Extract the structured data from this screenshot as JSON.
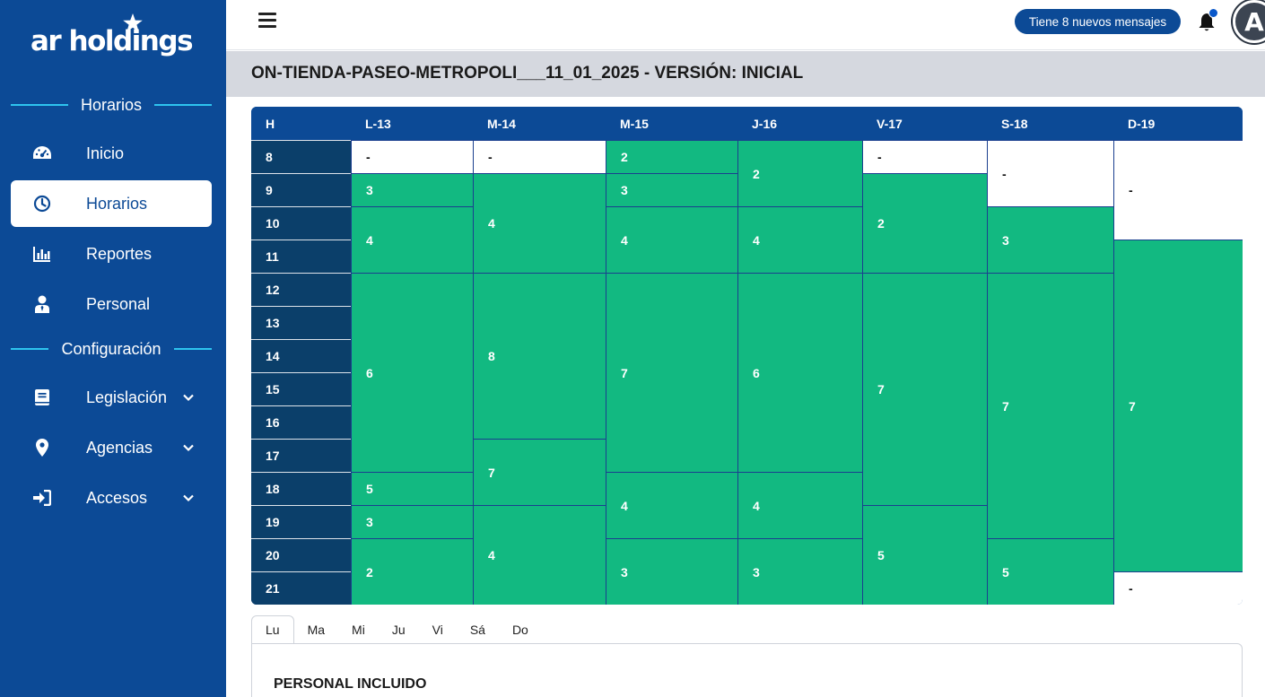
{
  "brand": {
    "name": "ar holdings"
  },
  "sidebar": {
    "section_horarios": "Horarios",
    "section_config": "Configuración",
    "items": [
      {
        "label": "Inicio",
        "icon": "dashboard-gauge-icon"
      },
      {
        "label": "Horarios",
        "icon": "clock-icon",
        "active": true
      },
      {
        "label": "Reportes",
        "icon": "bar-chart-icon"
      },
      {
        "label": "Personal",
        "icon": "user-tie-icon"
      },
      {
        "label": "Legislación",
        "icon": "book-icon",
        "expandable": true
      },
      {
        "label": "Agencias",
        "icon": "map-pin-icon",
        "expandable": true
      },
      {
        "label": "Accesos",
        "icon": "sign-in-icon",
        "expandable": true
      }
    ]
  },
  "header": {
    "messages_label": "Tiene 8 nuevos mensajes",
    "avatar_initial": "A"
  },
  "page_title": "ON-TIENDA-PASEO-METROPOLI___11_01_2025 - VERSIÓN: INICIAL",
  "schedule": {
    "hour_header": "H",
    "hours": [
      "8",
      "9",
      "10",
      "11",
      "12",
      "13",
      "14",
      "15",
      "16",
      "17",
      "18",
      "19",
      "20",
      "21"
    ],
    "days": [
      {
        "label": "L-13",
        "blocks": [
          {
            "start": 8,
            "end": 9,
            "value": "-",
            "on": false
          },
          {
            "start": 9,
            "end": 10,
            "value": "3",
            "on": true
          },
          {
            "start": 10,
            "end": 12,
            "value": "4",
            "on": true
          },
          {
            "start": 12,
            "end": 18,
            "value": "6",
            "on": true
          },
          {
            "start": 18,
            "end": 19,
            "value": "5",
            "on": true
          },
          {
            "start": 19,
            "end": 20,
            "value": "3",
            "on": true
          },
          {
            "start": 20,
            "end": 22,
            "value": "2",
            "on": true
          }
        ]
      },
      {
        "label": "M-14",
        "blocks": [
          {
            "start": 8,
            "end": 9,
            "value": "-",
            "on": false
          },
          {
            "start": 9,
            "end": 12,
            "value": "4",
            "on": true
          },
          {
            "start": 12,
            "end": 17,
            "value": "8",
            "on": true
          },
          {
            "start": 17,
            "end": 19,
            "value": "7",
            "on": true
          },
          {
            "start": 19,
            "end": 22,
            "value": "4",
            "on": true
          }
        ]
      },
      {
        "label": "M-15",
        "blocks": [
          {
            "start": 8,
            "end": 9,
            "value": "2",
            "on": true
          },
          {
            "start": 9,
            "end": 10,
            "value": "3",
            "on": true
          },
          {
            "start": 10,
            "end": 12,
            "value": "4",
            "on": true
          },
          {
            "start": 12,
            "end": 18,
            "value": "7",
            "on": true
          },
          {
            "start": 18,
            "end": 20,
            "value": "4",
            "on": true
          },
          {
            "start": 20,
            "end": 22,
            "value": "3",
            "on": true
          }
        ]
      },
      {
        "label": "J-16",
        "blocks": [
          {
            "start": 8,
            "end": 10,
            "value": "2",
            "on": true
          },
          {
            "start": 10,
            "end": 12,
            "value": "4",
            "on": true
          },
          {
            "start": 12,
            "end": 18,
            "value": "6",
            "on": true
          },
          {
            "start": 18,
            "end": 20,
            "value": "4",
            "on": true
          },
          {
            "start": 20,
            "end": 22,
            "value": "3",
            "on": true
          }
        ]
      },
      {
        "label": "V-17",
        "blocks": [
          {
            "start": 8,
            "end": 9,
            "value": "-",
            "on": false
          },
          {
            "start": 9,
            "end": 12,
            "value": "2",
            "on": true
          },
          {
            "start": 12,
            "end": 19,
            "value": "7",
            "on": true
          },
          {
            "start": 19,
            "end": 22,
            "value": "5",
            "on": true
          }
        ]
      },
      {
        "label": "S-18",
        "blocks": [
          {
            "start": 8,
            "end": 10,
            "value": "-",
            "on": false
          },
          {
            "start": 10,
            "end": 12,
            "value": "3",
            "on": true
          },
          {
            "start": 12,
            "end": 20,
            "value": "7",
            "on": true
          },
          {
            "start": 20,
            "end": 22,
            "value": "5",
            "on": true
          }
        ]
      },
      {
        "label": "D-19",
        "blocks": [
          {
            "start": 8,
            "end": 11,
            "value": "-",
            "on": false
          },
          {
            "start": 11,
            "end": 21,
            "value": "7",
            "on": true
          },
          {
            "start": 21,
            "end": 22,
            "value": "-",
            "on": false
          }
        ]
      }
    ]
  },
  "tabs": [
    "Lu",
    "Ma",
    "Mi",
    "Ju",
    "Vi",
    "Sá",
    "Do"
  ],
  "active_tab": "Lu",
  "panel_title": "PERSONAL INCLUIDO"
}
